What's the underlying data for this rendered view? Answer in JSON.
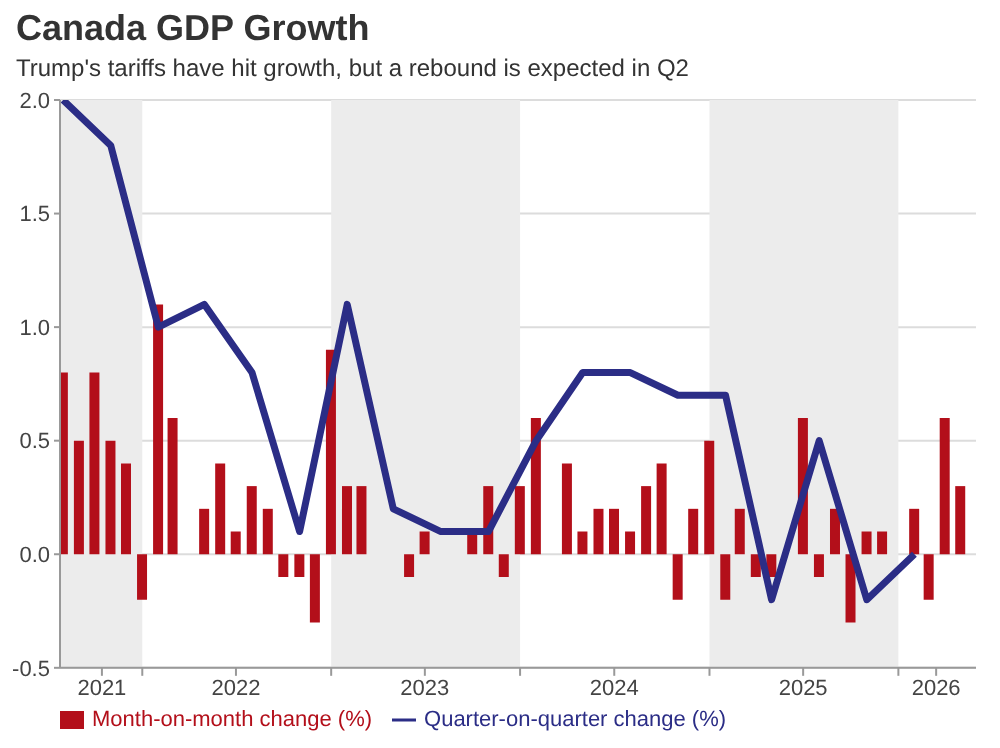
{
  "chart_data": {
    "type": "bar",
    "title": "Canada GDP Growth",
    "subtitle": "Trump's tariffs have hit growth, but a rebound is expected in Q2",
    "series": [
      {
        "name": "Month-on-month change (%)",
        "color": "#b30f1a",
        "x": [
          "2021-08",
          "2021-09",
          "2021-10",
          "2021-11",
          "2021-12",
          "2022-01",
          "2022-02",
          "2022-03",
          "2022-04",
          "2022-05",
          "2022-06",
          "2022-07",
          "2022-08",
          "2022-09",
          "2022-10",
          "2022-11",
          "2022-12",
          "2023-01",
          "2023-02",
          "2023-03",
          "2023-04",
          "2023-05",
          "2023-06",
          "2023-07",
          "2023-08",
          "2023-09",
          "2023-10",
          "2023-11",
          "2023-12",
          "2024-01",
          "2024-02",
          "2024-03",
          "2024-04",
          "2024-05",
          "2024-06",
          "2024-07",
          "2024-08",
          "2024-09",
          "2024-10",
          "2024-11",
          "2024-12",
          "2025-01",
          "2025-02",
          "2025-03",
          "2025-04",
          "2025-05",
          "2025-06",
          "2025-07",
          "2025-08",
          "2025-09",
          "2025-10",
          "2025-11",
          "2025-12",
          "2026-01",
          "2026-02",
          "2026-03",
          "2026-04",
          "2026-05"
        ],
        "values": [
          0.8,
          0.5,
          0.8,
          0.5,
          0.4,
          -0.2,
          1.1,
          0.6,
          0.0,
          0.2,
          0.4,
          0.1,
          0.3,
          0.2,
          -0.1,
          -0.1,
          -0.3,
          0.9,
          0.3,
          0.3,
          0.0,
          0.0,
          -0.1,
          0.1,
          0.0,
          0.0,
          0.1,
          0.3,
          -0.1,
          0.3,
          0.6,
          0.0,
          0.4,
          0.1,
          0.2,
          0.2,
          0.1,
          0.3,
          0.4,
          -0.2,
          0.2,
          0.5,
          -0.2,
          0.2,
          -0.1,
          -0.1,
          0.0,
          0.6,
          -0.1,
          0.2,
          -0.3,
          0.1,
          0.1,
          0.0,
          0.2,
          -0.2,
          0.6,
          0.3
        ]
      },
      {
        "type": "line",
        "name": "Quarter-on-quarter change (%)",
        "color": "#2b2d86",
        "x": [
          "2021-08",
          "2021-11",
          "2022-02",
          "2022-05",
          "2022-08",
          "2022-11",
          "2023-02",
          "2023-05",
          "2023-08",
          "2023-11",
          "2024-02",
          "2024-05",
          "2024-08",
          "2024-11",
          "2025-02",
          "2025-05",
          "2025-08",
          "2025-11",
          "2026-02"
        ],
        "values": [
          2.0,
          1.8,
          1.0,
          1.1,
          0.8,
          0.1,
          1.1,
          0.2,
          0.1,
          0.1,
          0.5,
          0.8,
          0.8,
          0.7,
          0.7,
          -0.2,
          0.5,
          -0.2,
          0.0
        ]
      }
    ],
    "xlim": [
      "2021-07-26",
      "2026-05-31"
    ],
    "xticks": [
      {
        "value": "2021-10-15",
        "label": "2021"
      },
      {
        "value": "2022-01-01",
        "label": null
      },
      {
        "value": "2022-07-01",
        "label": "2022"
      },
      {
        "value": "2023-01-01",
        "label": null
      },
      {
        "value": "2023-07-01",
        "label": "2023"
      },
      {
        "value": "2024-01-01",
        "label": null
      },
      {
        "value": "2024-07-01",
        "label": "2024"
      },
      {
        "value": "2025-01-01",
        "label": null
      },
      {
        "value": "2025-07-01",
        "label": "2025"
      },
      {
        "value": "2026-01-01",
        "label": null
      },
      {
        "value": "2026-03-15",
        "label": "2026"
      }
    ],
    "ylim": [
      -0.5,
      2.0
    ],
    "yticks": [
      {
        "value": -0.5,
        "label": "-0.5"
      },
      {
        "value": 0,
        "label": "0.0"
      },
      {
        "value": 0.5,
        "label": "0.5"
      },
      {
        "value": 1,
        "label": "1.0"
      },
      {
        "value": 1.5,
        "label": "1.5"
      },
      {
        "value": 2,
        "label": "2.0"
      }
    ],
    "bands": [
      {
        "axis": "x",
        "from": "2021-07-26",
        "to": "2022-01-01",
        "color": "#ececec"
      },
      {
        "axis": "x",
        "from": "2023-01-01",
        "to": "2024-01-01",
        "color": "#ececec"
      },
      {
        "axis": "x",
        "from": "2025-01-01",
        "to": "2026-01-01",
        "color": "#ececec"
      }
    ],
    "grid": "y",
    "legend": "bottom"
  }
}
